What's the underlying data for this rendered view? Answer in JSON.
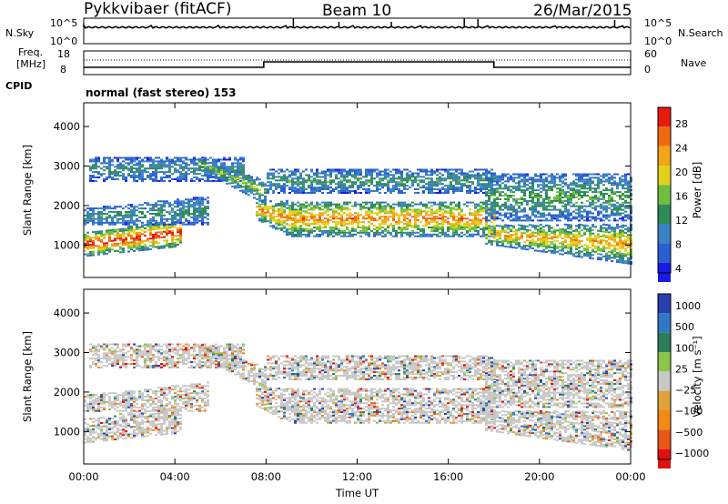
{
  "header": {
    "station": "Pykkvibaer (fitACF)",
    "beam": "Beam 10",
    "date": "26/Mar/2015"
  },
  "top_panel": {
    "left_label": "N.Sky",
    "left_ticks": [
      "10^5",
      "10^0"
    ],
    "right_ticks": [
      "10^5",
      "10^0"
    ],
    "right_label": "N.Search"
  },
  "freq_panel": {
    "left_label_1": "Freq.",
    "left_label_2": "[MHz]",
    "left_ticks": [
      "18",
      "8"
    ],
    "right_ticks": [
      "60",
      "0"
    ],
    "right_label": "Nave"
  },
  "cpid": {
    "label": "CPID",
    "value": "normal (fast stereo) 153"
  },
  "colors": {
    "power_scale": [
      "#1a1ae6",
      "#2a5fd0",
      "#3b82c4",
      "#2e8b57",
      "#6fbf3f",
      "#e3d21a",
      "#f2a516",
      "#f06a10",
      "#e8190e"
    ],
    "velocity_scale": [
      "#2a3fae",
      "#2f78c6",
      "#2e7d5a",
      "#8dc44a",
      "#c8c8c8",
      "#e0a23a",
      "#f28a14",
      "#e9571a",
      "#e01010"
    ],
    "ground_scatter": "#c8c8c8"
  },
  "chart_data": [
    {
      "type": "heatmap",
      "name": "Power",
      "xlabel": "",
      "ylabel": "Slant Range [km]",
      "x_ticks": [
        "00:00",
        "04:00",
        "08:00",
        "12:00",
        "16:00",
        "20:00",
        "00:00"
      ],
      "y_ticks": [
        "1000",
        "2000",
        "3000",
        "4000"
      ],
      "xlim_hours": [
        0,
        24
      ],
      "ylim_km": [
        180,
        4600
      ],
      "colorbar": {
        "label": "Power [dB]",
        "ticks": [
          "4",
          "8",
          "12",
          "16",
          "20",
          "24",
          "28"
        ],
        "range": [
          0,
          30
        ]
      }
    },
    {
      "type": "heatmap",
      "name": "Velocity",
      "xlabel": "Time UT",
      "ylabel": "Slant Range [km]",
      "x_ticks": [
        "00:00",
        "04:00",
        "08:00",
        "12:00",
        "16:00",
        "20:00",
        "00:00"
      ],
      "y_ticks": [
        "1000",
        "2000",
        "3000",
        "4000"
      ],
      "xlim_hours": [
        0,
        24
      ],
      "ylim_km": [
        180,
        4600
      ],
      "colorbar": {
        "label": "Velocity [m s⁻¹]",
        "ticks": [
          "1000",
          "500",
          "100",
          "25",
          "−25",
          "−100",
          "−500",
          "−1000"
        ],
        "range": [
          -1000,
          1000
        ]
      }
    }
  ]
}
